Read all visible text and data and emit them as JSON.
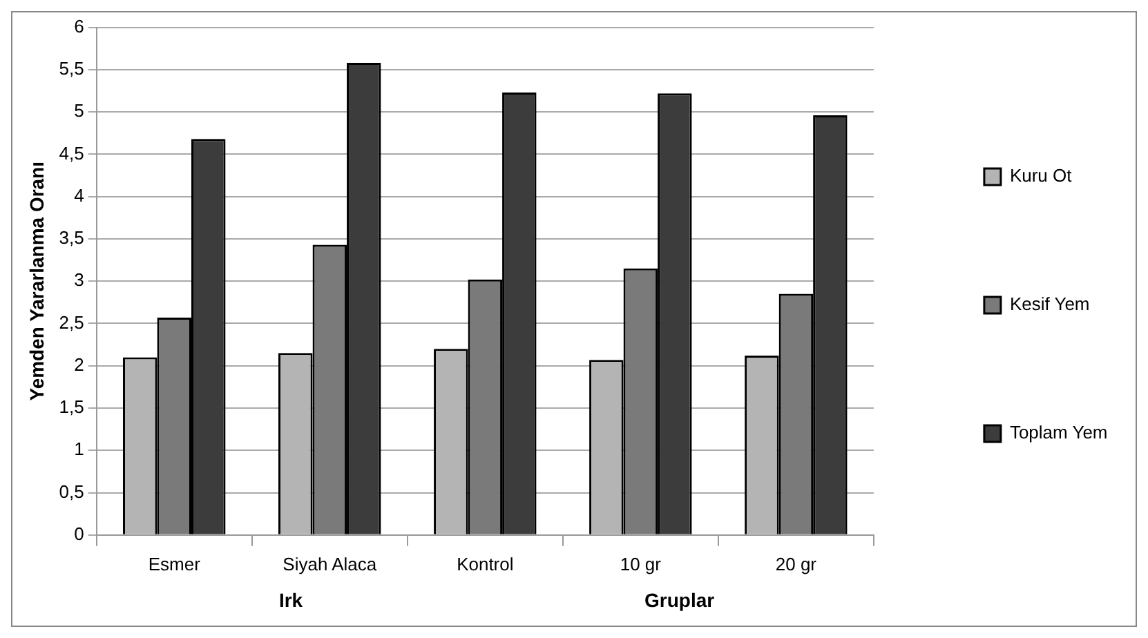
{
  "chart_data": {
    "type": "bar",
    "ylabel": "Yemden Yararlanma Oranı",
    "categories": [
      "Esmer",
      "Siyah Alaca",
      "Kontrol",
      "10 gr",
      "20 gr"
    ],
    "series": [
      {
        "name": "Kuru Ot",
        "color": "#b4b4b4",
        "values": [
          2.1,
          2.15,
          2.2,
          2.07,
          2.12
        ]
      },
      {
        "name": "Kesif Yem",
        "color": "#7a7a7a",
        "values": [
          2.57,
          3.43,
          3.02,
          3.15,
          2.85
        ]
      },
      {
        "name": "Toplam Yem",
        "color": "#3c3c3c",
        "values": [
          4.68,
          5.58,
          5.23,
          5.22,
          4.96
        ]
      }
    ],
    "ylim": [
      0,
      6
    ],
    "yticks": [
      {
        "value": 0,
        "label": "0"
      },
      {
        "value": 0.5,
        "label": "0,5"
      },
      {
        "value": 1,
        "label": "1"
      },
      {
        "value": 1.5,
        "label": "1,5"
      },
      {
        "value": 2,
        "label": "2"
      },
      {
        "value": 2.5,
        "label": "2,5"
      },
      {
        "value": 3,
        "label": "3"
      },
      {
        "value": 3.5,
        "label": "3,5"
      },
      {
        "value": 4,
        "label": "4"
      },
      {
        "value": 4.5,
        "label": "4,5"
      },
      {
        "value": 5,
        "label": "5"
      },
      {
        "value": 5.5,
        "label": "5,5"
      },
      {
        "value": 6,
        "label": "6"
      }
    ],
    "grid": "y",
    "legend": "right",
    "annotations": [
      "Irk",
      "Gruplar"
    ]
  }
}
